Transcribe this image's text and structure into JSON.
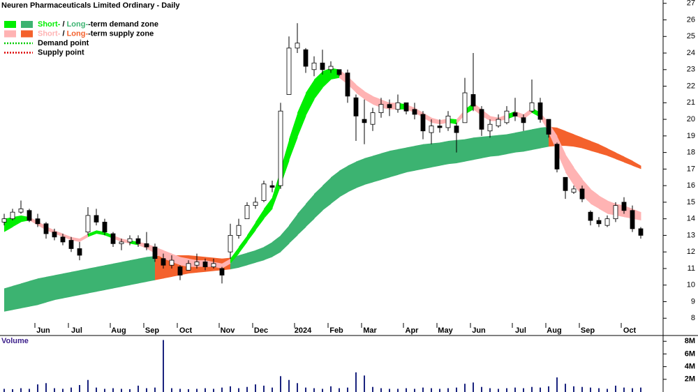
{
  "chart_data": {
    "type": "candlestick",
    "title": "Neuren Pharmaceuticals Limited Ordinary - Daily",
    "volume_label": "Volume",
    "categories": [
      null,
      null,
      null,
      null,
      "Jun",
      null,
      null,
      null,
      "Jul",
      null,
      null,
      null,
      null,
      "Aug",
      null,
      null,
      null,
      "Sep",
      null,
      null,
      null,
      "Oct",
      null,
      null,
      null,
      null,
      "Nov",
      null,
      null,
      null,
      "Dec",
      null,
      null,
      null,
      null,
      "2024",
      null,
      null,
      null,
      "Feb",
      null,
      null,
      null,
      "Mar",
      null,
      null,
      null,
      null,
      "Apr",
      null,
      null,
      null,
      "May",
      null,
      null,
      null,
      "Jun",
      null,
      null,
      null,
      null,
      "Jul",
      null,
      null,
      null,
      "Aug",
      null,
      null,
      null,
      "Sep",
      null,
      null,
      null,
      null,
      "Oct",
      null,
      null
    ],
    "open": [
      13.8,
      14.0,
      14.4,
      14.5,
      14.0,
      13.7,
      13.2,
      12.9,
      12.7,
      12.2,
      13.2,
      14.2,
      13.8,
      13.1,
      12.5,
      12.6,
      12.8,
      12.5,
      12.3,
      11.6,
      11.2,
      11.1,
      10.9,
      11.2,
      11.4,
      11.1,
      11.0,
      12.0,
      13.0,
      14.0,
      14.8,
      15.1,
      16.0,
      16.0,
      21.5,
      24.3,
      24.2,
      23.0,
      23.4,
      23.0,
      23.0,
      22.8,
      21.3,
      20.0,
      19.7,
      20.4,
      20.9,
      20.6,
      21.0,
      20.6,
      20.3,
      19.2,
      19.6,
      19.5,
      19.6,
      19.8,
      21.5,
      20.6,
      19.3,
      19.6,
      19.8,
      20.4,
      20.1,
      20.5,
      21.0,
      20.0,
      18.5,
      16.5,
      15.6,
      15.8,
      14.4,
      13.9,
      13.6,
      14.0,
      15.0,
      14.5,
      13.4
    ],
    "high": [
      14.3,
      14.6,
      15.1,
      14.6,
      14.3,
      13.8,
      13.4,
      13.1,
      12.9,
      12.6,
      14.7,
      14.6,
      14.0,
      13.2,
      12.8,
      13.0,
      13.0,
      13.2,
      12.5,
      11.9,
      11.8,
      11.2,
      11.5,
      11.9,
      11.6,
      11.6,
      11.1,
      13.7,
      14.0,
      15.0,
      15.3,
      16.3,
      16.3,
      21.0,
      25.0,
      25.8,
      24.3,
      23.8,
      24.2,
      23.5,
      23.0,
      23.0,
      21.5,
      21.2,
      20.7,
      21.3,
      21.2,
      21.5,
      21.0,
      21.0,
      20.5,
      20.0,
      20.0,
      20.5,
      19.8,
      22.5,
      24.0,
      20.8,
      20.0,
      20.3,
      20.8,
      21.3,
      20.3,
      22.4,
      21.3,
      20.0,
      18.6,
      16.5,
      16.0,
      16.0,
      14.5,
      14.1,
      14.2,
      15.0,
      15.3,
      14.8,
      13.5
    ],
    "low": [
      13.6,
      13.9,
      14.3,
      13.8,
      13.5,
      12.8,
      12.7,
      12.4,
      12.0,
      11.5,
      13.0,
      13.6,
      13.0,
      12.3,
      12.1,
      12.4,
      12.3,
      12.1,
      11.4,
      11.0,
      11.0,
      10.3,
      10.9,
      11.0,
      10.9,
      11.0,
      10.1,
      11.6,
      12.8,
      14.0,
      14.6,
      15.0,
      15.6,
      15.8,
      21.5,
      24.0,
      22.8,
      22.6,
      22.7,
      22.8,
      22.6,
      21.0,
      18.7,
      18.5,
      19.3,
      20.1,
      20.2,
      20.4,
      20.3,
      20.0,
      18.8,
      18.5,
      19.2,
      19.3,
      18.0,
      19.8,
      20.5,
      19.0,
      18.9,
      19.5,
      19.7,
      19.9,
      19.3,
      20.4,
      19.8,
      18.9,
      16.8,
      15.2,
      15.5,
      15.0,
      13.6,
      13.5,
      13.5,
      13.8,
      14.3,
      13.2,
      12.8
    ],
    "close": [
      14.0,
      14.4,
      14.6,
      13.9,
      13.7,
      13.1,
      12.9,
      12.6,
      12.2,
      11.8,
      14.2,
      13.8,
      13.2,
      12.5,
      12.6,
      12.8,
      12.5,
      12.3,
      11.6,
      11.2,
      11.5,
      10.6,
      11.3,
      11.4,
      11.1,
      11.3,
      10.6,
      13.0,
      13.6,
      14.8,
      15.0,
      16.1,
      15.9,
      20.5,
      24.3,
      24.6,
      23.2,
      23.4,
      23.0,
      23.2,
      22.7,
      21.4,
      20.2,
      19.8,
      20.4,
      20.9,
      20.7,
      21.0,
      20.5,
      20.3,
      19.3,
      19.6,
      19.5,
      20.2,
      19.2,
      21.6,
      20.8,
      19.4,
      19.7,
      20.0,
      20.5,
      20.2,
      19.8,
      21.0,
      20.0,
      19.1,
      17.0,
      15.7,
      15.8,
      15.2,
      13.9,
      13.7,
      14.0,
      14.8,
      14.5,
      13.4,
      13.0
    ],
    "long_zone": {
      "lower": [
        8.4,
        8.5,
        8.6,
        8.7,
        8.8,
        8.95,
        9.1,
        9.2,
        9.3,
        9.4,
        9.5,
        9.6,
        9.7,
        9.8,
        9.9,
        10.0,
        10.1,
        10.2,
        10.3,
        10.4,
        10.5,
        10.6,
        10.7,
        10.75,
        10.8,
        10.85,
        10.9,
        10.95,
        11.05,
        11.2,
        11.35,
        11.5,
        11.7,
        12.0,
        12.5,
        13.0,
        13.5,
        14.0,
        14.5,
        14.9,
        15.3,
        15.6,
        15.85,
        16.05,
        16.2,
        16.35,
        16.5,
        16.65,
        16.8,
        16.9,
        17.0,
        17.1,
        17.2,
        17.3,
        17.35,
        17.45,
        17.55,
        17.65,
        17.75,
        17.8,
        17.9,
        18.0,
        18.05,
        18.15,
        18.25,
        18.35,
        18.4,
        18.4,
        18.35,
        18.25,
        18.1,
        17.95,
        17.8,
        17.6,
        17.4,
        17.2,
        17.0
      ],
      "upper": [
        9.8,
        9.95,
        10.1,
        10.25,
        10.4,
        10.5,
        10.6,
        10.7,
        10.8,
        10.9,
        11.0,
        11.1,
        11.2,
        11.3,
        11.4,
        11.5,
        11.6,
        11.7,
        11.75,
        11.8,
        11.8,
        11.8,
        11.8,
        11.75,
        11.7,
        11.65,
        11.6,
        11.65,
        11.8,
        11.95,
        12.1,
        12.3,
        12.6,
        13.0,
        13.6,
        14.3,
        14.9,
        15.5,
        16.0,
        16.5,
        16.9,
        17.2,
        17.45,
        17.65,
        17.8,
        17.95,
        18.1,
        18.2,
        18.3,
        18.4,
        18.5,
        18.55,
        18.6,
        18.7,
        18.75,
        18.8,
        18.9,
        18.95,
        19.0,
        19.05,
        19.1,
        19.2,
        19.3,
        19.4,
        19.5,
        19.55,
        19.5,
        19.3,
        19.1,
        18.9,
        18.7,
        18.5,
        18.25,
        18.0,
        17.75,
        17.5,
        17.2
      ],
      "demand_color": "#3cb371",
      "supply_color": "#f4612c"
    },
    "short_zone": {
      "lower": [
        13.2,
        13.5,
        13.8,
        13.9,
        13.6,
        13.3,
        13.1,
        12.9,
        12.7,
        12.6,
        12.9,
        13.1,
        13.0,
        12.8,
        12.6,
        12.5,
        12.4,
        12.2,
        11.9,
        11.6,
        11.4,
        11.2,
        11.1,
        11.1,
        11.1,
        11.1,
        11.0,
        11.3,
        11.9,
        12.6,
        13.3,
        14.0,
        14.6,
        16.0,
        17.5,
        18.9,
        20.2,
        21.2,
        21.9,
        22.4,
        22.5,
        22.1,
        21.6,
        21.2,
        20.9,
        20.7,
        20.6,
        20.6,
        20.6,
        20.4,
        20.1,
        19.8,
        19.7,
        19.8,
        19.7,
        20.3,
        20.6,
        20.2,
        19.9,
        19.9,
        20.0,
        20.2,
        20.0,
        20.4,
        20.1,
        19.2,
        18.0,
        16.8,
        16.0,
        15.4,
        14.9,
        14.6,
        14.3,
        14.2,
        14.1,
        14.0,
        13.9
      ],
      "upper": [
        14.0,
        14.1,
        14.2,
        14.1,
        13.85,
        13.55,
        13.3,
        13.1,
        12.9,
        12.8,
        13.1,
        13.3,
        13.2,
        13.0,
        12.8,
        12.7,
        12.6,
        12.5,
        12.3,
        12.1,
        11.9,
        11.7,
        11.6,
        11.5,
        11.5,
        11.4,
        11.3,
        11.6,
        12.3,
        13.0,
        13.8,
        14.6,
        15.3,
        17.0,
        18.8,
        20.4,
        21.6,
        22.4,
        22.9,
        23.1,
        23.0,
        22.6,
        22.1,
        21.7,
        21.4,
        21.2,
        21.0,
        21.0,
        20.9,
        20.7,
        20.4,
        20.1,
        19.95,
        20.05,
        20.0,
        20.6,
        21.0,
        20.6,
        20.2,
        20.1,
        20.3,
        20.5,
        20.3,
        20.7,
        20.4,
        19.8,
        19.0,
        17.9,
        17.1,
        16.4,
        15.8,
        15.4,
        15.1,
        14.9,
        14.8,
        14.6,
        14.4
      ],
      "demand_color": "#00ee00",
      "supply_color": "#ffb3b3"
    },
    "volume": [
      500000,
      450000,
      600000,
      500000,
      1200000,
      1400000,
      600000,
      500000,
      700000,
      1100000,
      1900000,
      700000,
      500000,
      600000,
      500000,
      450000,
      1000000,
      600000,
      700000,
      8200000,
      600000,
      500000,
      450000,
      500000,
      600000,
      500000,
      700000,
      900000,
      600000,
      800000,
      1200000,
      1000000,
      700000,
      2500000,
      1900000,
      1400000,
      700000,
      600000,
      500000,
      900000,
      600000,
      700000,
      3100000,
      2600000,
      800000,
      600000,
      500000,
      500000,
      600000,
      500000,
      700000,
      600000,
      500000,
      600000,
      700000,
      1300000,
      1500000,
      800000,
      600000,
      500000,
      600000,
      700000,
      600000,
      800000,
      700000,
      900000,
      2300000,
      1300000,
      900000,
      800000,
      700000,
      600000,
      500000,
      1000000,
      700000,
      600000,
      700000
    ],
    "volume_color": "#1a237e",
    "ylim": [
      7,
      27.2
    ],
    "yticks": [
      8,
      9,
      10,
      11,
      12,
      13,
      14,
      15,
      16,
      17,
      18,
      19,
      20,
      21,
      22,
      23,
      24,
      25,
      26,
      27
    ],
    "y2lim": [
      0,
      8800000
    ],
    "y2ticks": [
      {
        "value": 2000000,
        "label": "2M"
      },
      {
        "value": 4000000,
        "label": "4M"
      },
      {
        "value": 6000000,
        "label": "6M"
      },
      {
        "value": 8000000,
        "label": "8M"
      }
    ],
    "legend": [
      {
        "texts": [
          "Short-",
          " / ",
          "Long-",
          "-term demand zone"
        ],
        "colors": [
          "#00ee00",
          "#3cb371"
        ]
      },
      {
        "texts": [
          "Short-",
          " / ",
          "Long-",
          "-term supply zone"
        ],
        "colors": [
          "#ffb3b3",
          "#f4612c"
        ]
      },
      {
        "texts": [
          "Demand point"
        ],
        "colors": [
          "#00cc00"
        ]
      },
      {
        "texts": [
          "Supply point"
        ],
        "colors": [
          "#dd0000"
        ]
      }
    ]
  }
}
